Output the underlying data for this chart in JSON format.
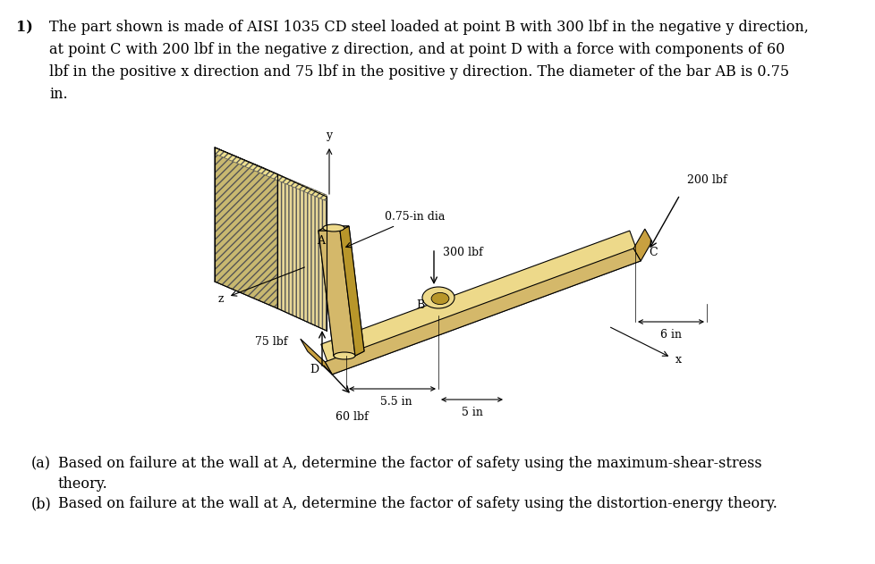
{
  "background_color": "#ffffff",
  "fig_width": 9.79,
  "fig_height": 6.31,
  "problem_number": "1)",
  "problem_text_line1": "The part shown is made of AISI 1035 CD steel loaded at point B with 300 lbf in the negative y direction,",
  "problem_text_line2": "at point C with 200 lbf in the negative z direction, and at point D with a force with components of 60",
  "problem_text_line3": "lbf in the positive x direction and 75 lbf in the positive y direction. The diameter of the bar AB is 0.75",
  "problem_text_line4": "in.",
  "gold_color": "#D4B86A",
  "gold_dark": "#B8962A",
  "gold_light": "#EDD98A",
  "gold_side": "#C8A040",
  "wall_face": "#E8D898",
  "wall_side": "#C8B870",
  "text_color": "#000000",
  "part_a_label": "(a)",
  "part_a_text": "Based on failure at the wall at A, determine the factor of safety using the maximum-shear-stress",
  "part_a_cont": "theory.",
  "part_b_label": "(b)",
  "part_b_text": "Based on failure at the wall at A, determine the factor of safety using the distortion-energy theory."
}
